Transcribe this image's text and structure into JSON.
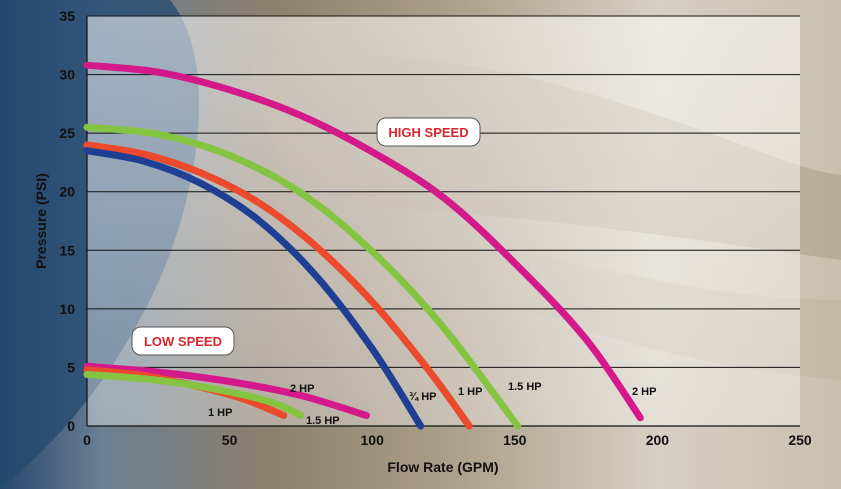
{
  "colors": {
    "three_quarter_hp": "#1f3f94",
    "one_hp": "#ec4a2c",
    "one_half_hp": "#85c441",
    "two_hp": "#d4198a",
    "badge_text": "#d8262c"
  },
  "chart_data": {
    "type": "line",
    "xlabel": "Flow Rate (GPM)",
    "ylabel": "Pressure (PSI)",
    "xlim": [
      0,
      250
    ],
    "ylim": [
      0,
      35
    ],
    "xticks": [
      "0",
      "50",
      "100",
      "150",
      "200",
      "250"
    ],
    "yticks": [
      "0",
      "5",
      "10",
      "15",
      "20",
      "25",
      "30",
      "35"
    ],
    "grid": "horizontal",
    "annotations": [
      "HIGH SPEED",
      "LOW SPEED"
    ],
    "series": [
      {
        "name": "¾ HP",
        "group": "HIGH SPEED",
        "color": "#1f3f94",
        "x": [
          0,
          20,
          40,
          60,
          80,
          100,
          117
        ],
        "y": [
          23.5,
          22.6,
          20.7,
          17.6,
          12.9,
          6.6,
          0
        ]
      },
      {
        "name": "1 HP",
        "group": "HIGH SPEED",
        "color": "#ec4a2c",
        "x": [
          0,
          20,
          40,
          60,
          80,
          100,
          120,
          134
        ],
        "y": [
          24,
          23.2,
          21.6,
          19.1,
          15.4,
          10.6,
          4.7,
          0
        ]
      },
      {
        "name": "1.5 HP",
        "group": "HIGH SPEED",
        "color": "#85c441",
        "x": [
          0,
          25,
          50,
          75,
          100,
          125,
          151
        ],
        "y": [
          25.5,
          24.9,
          23.1,
          19.9,
          14.9,
          8.4,
          0
        ]
      },
      {
        "name": "2 HP",
        "group": "HIGH SPEED",
        "color": "#d4198a",
        "x": [
          0,
          25,
          50,
          75,
          100,
          125,
          150,
          175,
          194
        ],
        "y": [
          30.8,
          30.2,
          28.7,
          26.5,
          23.4,
          19.5,
          13.9,
          7.4,
          0.7
        ]
      },
      {
        "name": "1 HP",
        "group": "LOW SPEED",
        "color": "#ec4a2c",
        "x": [
          0,
          20,
          40,
          55,
          69
        ],
        "y": [
          4.8,
          4.3,
          3.3,
          2.3,
          0.9
        ]
      },
      {
        "name": "1.5 HP",
        "group": "LOW SPEED",
        "color": "#85c441",
        "x": [
          0,
          25,
          50,
          65,
          75
        ],
        "y": [
          4.4,
          3.9,
          2.9,
          2.0,
          0.9
        ]
      },
      {
        "name": "2 HP",
        "group": "LOW SPEED",
        "color": "#d4198a",
        "x": [
          0,
          25,
          50,
          75,
          98
        ],
        "y": [
          5.1,
          4.6,
          3.8,
          2.6,
          0.9
        ]
      }
    ]
  }
}
